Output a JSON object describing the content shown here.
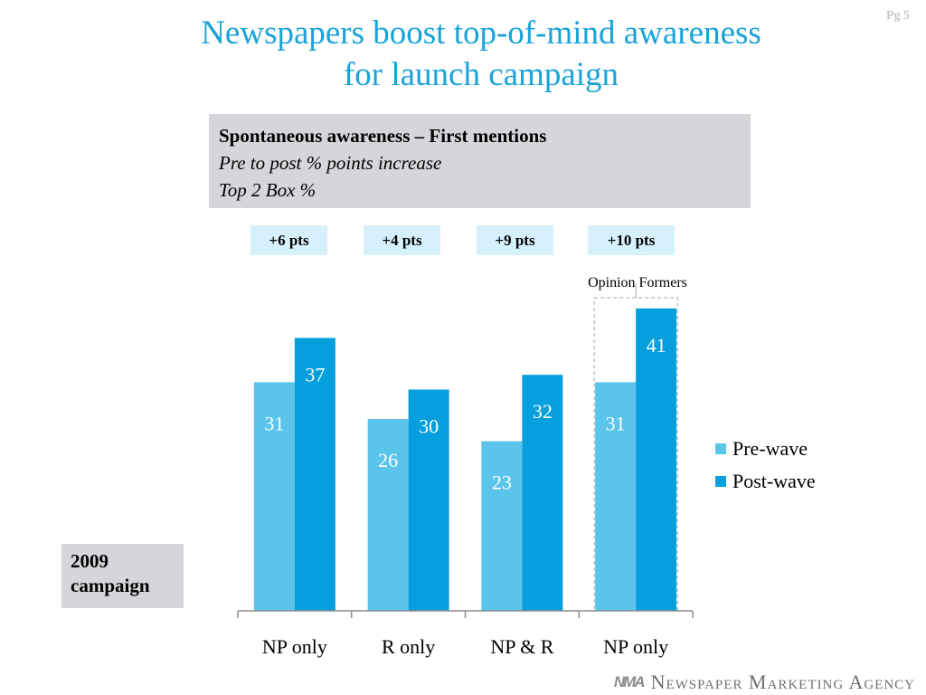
{
  "title_line1": "Newspapers boost top-of-mind awareness",
  "title_line2": "for launch campaign",
  "page_number": "Pg 5",
  "info_box": {
    "line1": "Spontaneous awareness – First mentions",
    "line2": "Pre to post % points increase",
    "line3": "Top 2 Box %"
  },
  "year_box": {
    "line1": "2009",
    "line2": "campaign"
  },
  "brand": {
    "logo": "NMA",
    "name": "Newspaper Marketing Agency"
  },
  "colors": {
    "title": "#1aa3d9",
    "pre_wave": "#5bc4eb",
    "post_wave": "#049fdc",
    "pts_box": "#d6f1fc"
  },
  "chart_data": {
    "type": "bar",
    "categories": [
      "NP only",
      "R only",
      "NP & R",
      "NP only"
    ],
    "series": [
      {
        "name": "Pre-wave",
        "values": [
          31,
          26,
          23,
          31
        ]
      },
      {
        "name": "Post-wave",
        "values": [
          37,
          30,
          32,
          41
        ]
      }
    ],
    "increases": [
      "+6 pts",
      "+4 pts",
      "+9 pts",
      "+10 pts"
    ],
    "highlight": {
      "category_index": 3,
      "label": "Opinion Formers"
    },
    "ylim": [
      0,
      45
    ],
    "grid": false,
    "legend_position": "right"
  }
}
